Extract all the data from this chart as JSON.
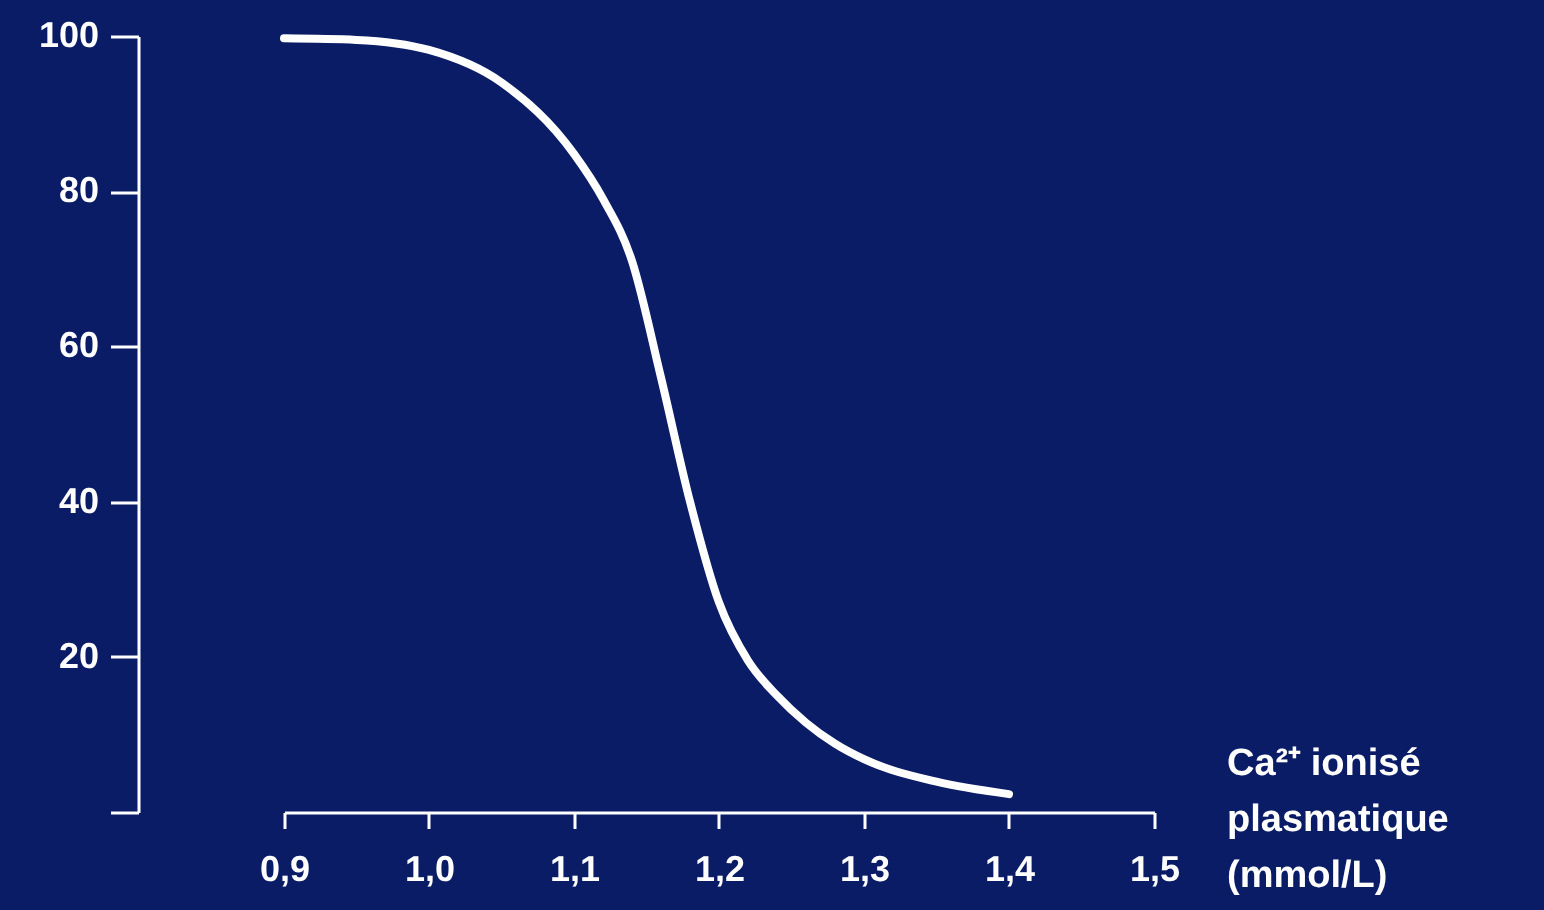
{
  "chart_data": {
    "type": "line",
    "xlabel": "Ca²⁺ ionisé plasmatique (mmol/L)",
    "x": [
      0.9,
      0.95,
      1.0,
      1.05,
      1.1,
      1.12,
      1.14,
      1.16,
      1.18,
      1.2,
      1.22,
      1.24,
      1.26,
      1.28,
      1.3,
      1.35,
      1.4
    ],
    "series": [
      {
        "color": "#ffffff",
        "values": [
          99.7,
          99.5,
          98.2,
          94,
          84.8,
          79,
          71,
          56,
          40,
          27,
          19.5,
          15,
          11.5,
          8.8,
          6.8,
          3.9,
          2.3
        ]
      }
    ],
    "xlim": [
      0.9,
      1.5
    ],
    "xticks": [
      {
        "value": 0.9,
        "label": "0,9"
      },
      {
        "value": 1.0,
        "label": "1,0"
      },
      {
        "value": 1.1,
        "label": "1,1"
      },
      {
        "value": 1.2,
        "label": "1,2"
      },
      {
        "value": 1.3,
        "label": "1,3"
      },
      {
        "value": 1.4,
        "label": "1,4"
      },
      {
        "value": 1.5,
        "label": "1,5"
      }
    ],
    "ylim": [
      0,
      100
    ],
    "yticks": [
      {
        "value": 0,
        "label": null
      },
      20,
      40,
      60,
      80,
      100
    ],
    "grid": false,
    "marker": "none",
    "line_style": "solid"
  }
}
